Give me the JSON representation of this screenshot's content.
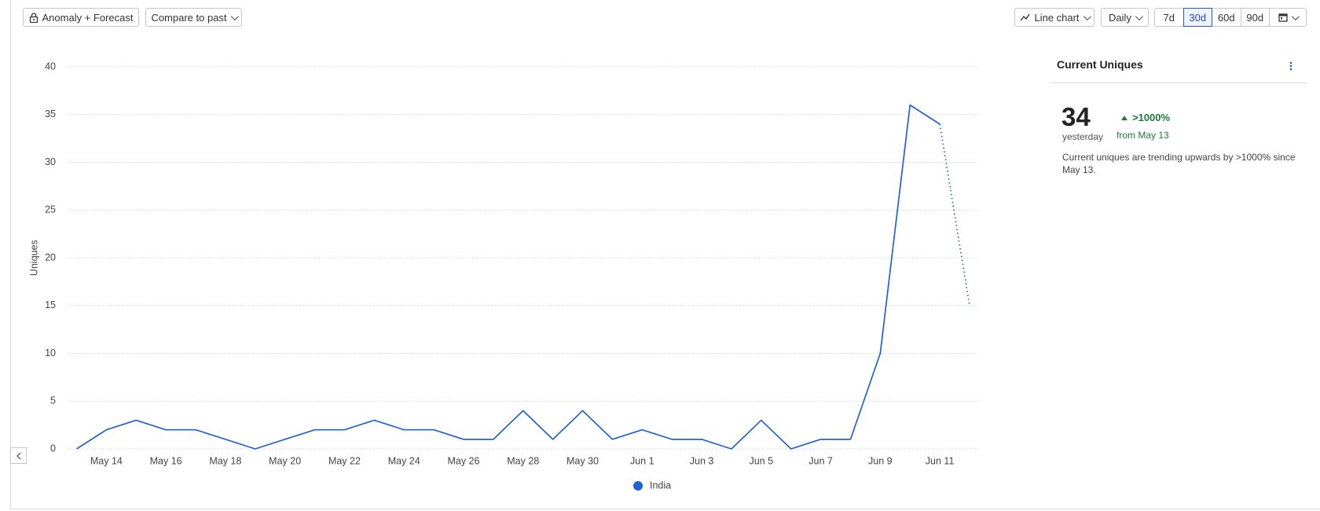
{
  "toolbar": {
    "anomaly": "Anomaly + Forecast",
    "compare": "Compare to past",
    "chart_type": "Line chart",
    "interval": "Daily",
    "ranges": [
      "7d",
      "30d",
      "60d",
      "90d"
    ],
    "selected_range": 1
  },
  "chart_data": {
    "type": "line",
    "y_label": "Uniques",
    "categories": [
      null,
      "May 14",
      null,
      "May 16",
      null,
      "May 18",
      null,
      "May 20",
      null,
      "May 22",
      null,
      "May 24",
      null,
      "May 26",
      null,
      "May 28",
      null,
      "May 30",
      null,
      "Jun 1",
      null,
      "Jun 3",
      null,
      "Jun 5",
      null,
      "Jun 7",
      null,
      "Jun 9",
      null,
      "Jun 11",
      null
    ],
    "series": [
      {
        "name": "India",
        "color": "#2261d6",
        "values": [
          0,
          2,
          3,
          2,
          2,
          1,
          0,
          1,
          2,
          2,
          3,
          2,
          2,
          1,
          1,
          4,
          1,
          4,
          1,
          2,
          1,
          1,
          0,
          3,
          0,
          1,
          1,
          10,
          36,
          34,
          15
        ]
      }
    ],
    "last_segment_dotted": true,
    "ylim": [
      0,
      40
    ],
    "yticks": [
      0,
      5,
      10,
      15,
      20,
      25,
      30,
      35,
      40
    ],
    "grid": true,
    "legend": "bottom"
  },
  "panel": {
    "title": "Current Uniques",
    "value": "34",
    "period": "yesterday",
    "change": ">1000%",
    "change_from": "from May 13",
    "description": "Current uniques are trending upwards by >1000% since May 13."
  }
}
